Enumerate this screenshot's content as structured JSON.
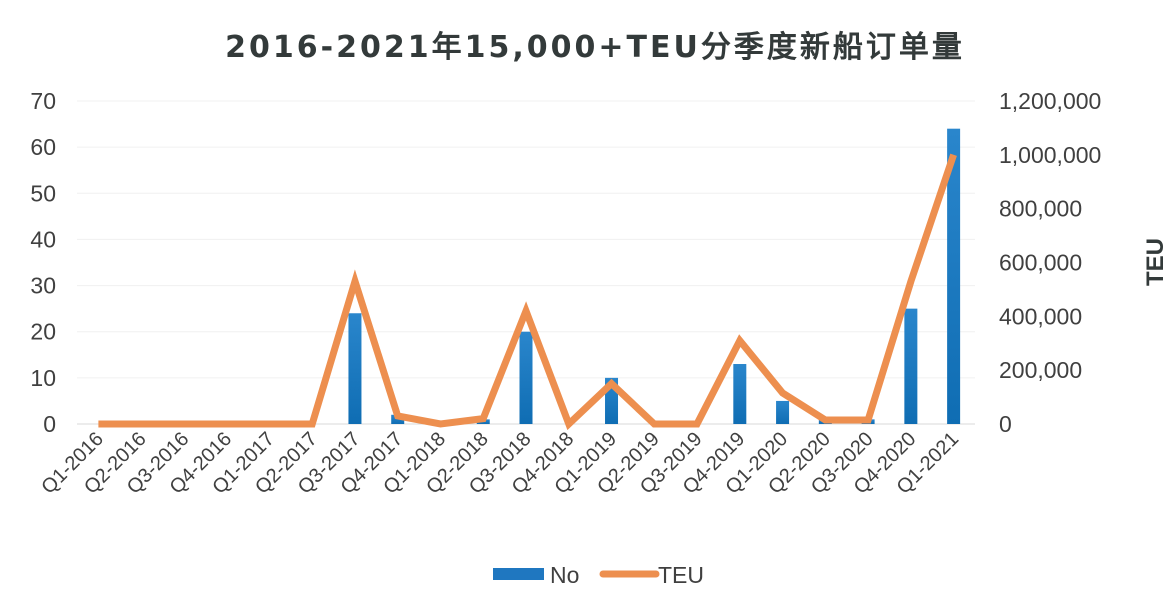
{
  "chart_data": {
    "type": "bar+line",
    "title": "2016-2021年15,000+TEU分季度新船订单量",
    "categories": [
      "Q1-2016",
      "Q2-2016",
      "Q3-2016",
      "Q4-2016",
      "Q1-2017",
      "Q2-2017",
      "Q3-2017",
      "Q4-2017",
      "Q1-2018",
      "Q2-2018",
      "Q3-2018",
      "Q4-2018",
      "Q1-2019",
      "Q2-2019",
      "Q3-2019",
      "Q4-2019",
      "Q1-2020",
      "Q2-2020",
      "Q3-2020",
      "Q4-2020",
      "Q1-2021"
    ],
    "series": [
      {
        "name": "No",
        "type": "bar",
        "axis": "left",
        "color": "#1f77c0",
        "values": [
          0,
          0,
          0,
          0,
          0,
          0,
          24,
          2,
          0,
          1,
          20,
          0,
          10,
          0,
          0,
          13,
          5,
          1,
          1,
          25,
          64
        ]
      },
      {
        "name": "TEU",
        "type": "line",
        "axis": "right",
        "color": "#ed8f4f",
        "values": [
          0,
          0,
          0,
          0,
          0,
          0,
          530000,
          30000,
          0,
          20000,
          420000,
          0,
          150000,
          0,
          0,
          310000,
          115000,
          15000,
          15000,
          530000,
          1000000
        ]
      }
    ],
    "left_axis": {
      "label": "",
      "ylim": [
        0,
        70
      ],
      "ticks": [
        "0",
        "10",
        "20",
        "30",
        "40",
        "50",
        "60",
        "70"
      ]
    },
    "right_axis": {
      "label": "TEU",
      "ylim": [
        0,
        1200000
      ],
      "ticks": [
        "0",
        "200,000",
        "400,000",
        "600,000",
        "800,000",
        "1,000,000",
        "1,200,000"
      ]
    },
    "xlabel": "",
    "grid": true,
    "legend": {
      "position": "bottom",
      "entries": [
        "No",
        "TEU"
      ]
    }
  }
}
